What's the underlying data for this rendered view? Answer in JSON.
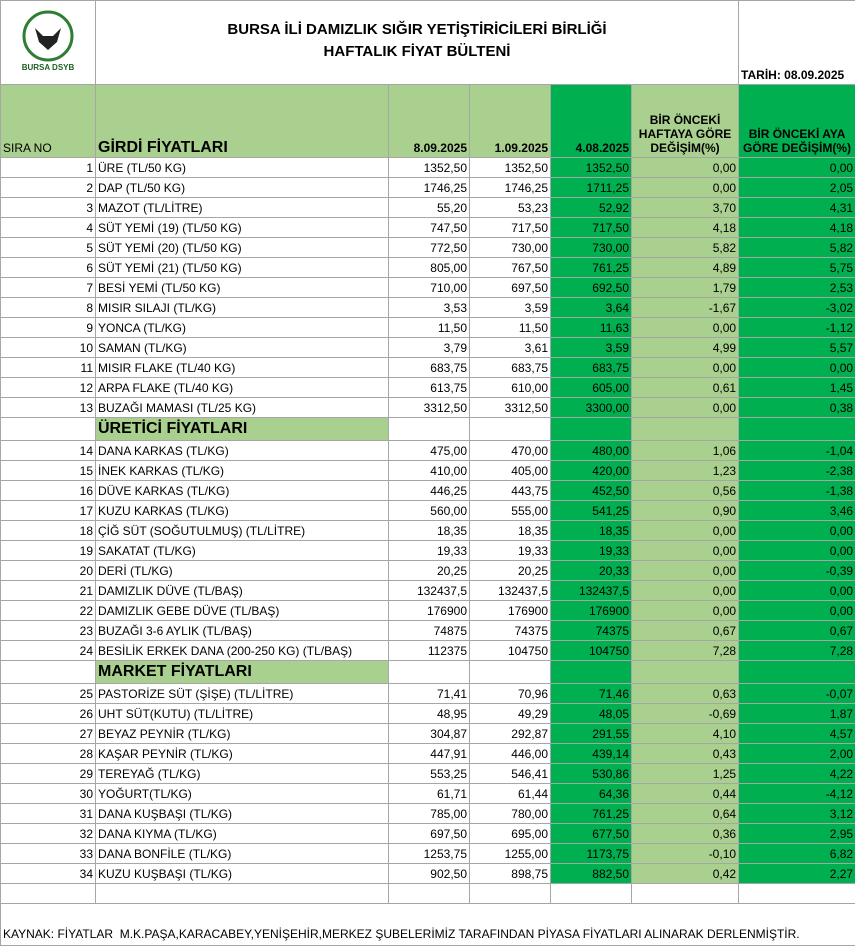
{
  "header": {
    "logo_text": "BURSA DSYB",
    "title_line1": "BURSA İLİ DAMIZLIK SIĞIR YETİŞTİRİCİLERİ BİRLİĞİ",
    "title_line2": "HAFTALIK FİYAT BÜLTENİ",
    "date": "TARİH: 08.09.2025"
  },
  "table": {
    "columns": [
      "SIRA NO",
      "GİRDİ FİYATLARI",
      "8.09.2025",
      "1.09.2025",
      "4.08.2025",
      "BİR ÖNCEKİ HAFTAYA GÖRE DEĞİŞİM(%)",
      "BİR ÖNCEKİ AYA GÖRE DEĞİŞİM(%)"
    ],
    "sections": [
      {
        "rows": [
          [
            "1",
            "ÜRE (TL/50 KG)",
            "1352,50",
            "1352,50",
            "1352,50",
            "0,00",
            "0,00"
          ],
          [
            "2",
            "DAP (TL/50 KG)",
            "1746,25",
            "1746,25",
            "1711,25",
            "0,00",
            "2,05"
          ],
          [
            "3",
            "MAZOT (TL/LİTRE)",
            "55,20",
            "53,23",
            "52,92",
            "3,70",
            "4,31"
          ],
          [
            "4",
            "SÜT YEMİ (19) (TL/50 KG)",
            "747,50",
            "717,50",
            "717,50",
            "4,18",
            "4,18"
          ],
          [
            "5",
            "SÜT YEMİ (20) (TL/50 KG)",
            "772,50",
            "730,00",
            "730,00",
            "5,82",
            "5,82"
          ],
          [
            "6",
            "SÜT YEMİ (21) (TL/50 KG)",
            "805,00",
            "767,50",
            "761,25",
            "4,89",
            "5,75"
          ],
          [
            "7",
            "BESİ YEMİ (TL/50 KG)",
            "710,00",
            "697,50",
            "692,50",
            "1,79",
            "2,53"
          ],
          [
            "8",
            "MISIR SILAJI (TL/KG)",
            "3,53",
            "3,59",
            "3,64",
            "-1,67",
            "-3,02"
          ],
          [
            "9",
            "YONCA (TL/KG)",
            "11,50",
            "11,50",
            "11,63",
            "0,00",
            "-1,12"
          ],
          [
            "10",
            "SAMAN (TL/KG)",
            "3,79",
            "3,61",
            "3,59",
            "4,99",
            "5,57"
          ],
          [
            "11",
            "MISIR FLAKE (TL/40 KG)",
            "683,75",
            "683,75",
            "683,75",
            "0,00",
            "0,00"
          ],
          [
            "12",
            "ARPA FLAKE (TL/40 KG)",
            "613,75",
            "610,00",
            "605,00",
            "0,61",
            "1,45"
          ],
          [
            "13",
            "BUZAĞI MAMASI (TL/25 KG)",
            "3312,50",
            "3312,50",
            "3300,00",
            "0,00",
            "0,38"
          ]
        ]
      },
      {
        "title": "ÜRETİCİ FİYATLARI",
        "rows": [
          [
            "14",
            "DANA KARKAS (TL/KG)",
            "475,00",
            "470,00",
            "480,00",
            "1,06",
            "-1,04"
          ],
          [
            "15",
            "İNEK KARKAS (TL/KG)",
            "410,00",
            "405,00",
            "420,00",
            "1,23",
            "-2,38"
          ],
          [
            "16",
            "DÜVE KARKAS (TL/KG)",
            "446,25",
            "443,75",
            "452,50",
            "0,56",
            "-1,38"
          ],
          [
            "17",
            "KUZU KARKAS (TL/KG)",
            "560,00",
            "555,00",
            "541,25",
            "0,90",
            "3,46"
          ],
          [
            "18",
            "ÇİĞ SÜT (SOĞUTULMUŞ) (TL/LİTRE)",
            "18,35",
            "18,35",
            "18,35",
            "0,00",
            "0,00"
          ],
          [
            "19",
            "SAKATAT (TL/KG)",
            "19,33",
            "19,33",
            "19,33",
            "0,00",
            "0,00"
          ],
          [
            "20",
            "DERİ (TL/KG)",
            "20,25",
            "20,25",
            "20,33",
            "0,00",
            "-0,39"
          ],
          [
            "21",
            "DAMIZLIK DÜVE (TL/BAŞ)",
            "132437,5",
            "132437,5",
            "132437,5",
            "0,00",
            "0,00"
          ],
          [
            "22",
            "DAMIZLIK GEBE DÜVE (TL/BAŞ)",
            "176900",
            "176900",
            "176900",
            "0,00",
            "0,00"
          ],
          [
            "23",
            "BUZAĞI 3-6 AYLIK (TL/BAŞ)",
            "74875",
            "74375",
            "74375",
            "0,67",
            "0,67"
          ],
          [
            "24",
            "BESİLİK ERKEK DANA (200-250 KG) (TL/BAŞ)",
            "112375",
            "104750",
            "104750",
            "7,28",
            "7,28"
          ]
        ]
      },
      {
        "title": "MARKET FİYATLARI",
        "rows": [
          [
            "25",
            "PASTORİZE SÜT (ŞİŞE) (TL/LİTRE)",
            "71,41",
            "70,96",
            "71,46",
            "0,63",
            "-0,07"
          ],
          [
            "26",
            "UHT SÜT(KUTU) (TL/LİTRE)",
            "48,95",
            "49,29",
            "48,05",
            "-0,69",
            "1,87"
          ],
          [
            "27",
            "BEYAZ PEYNİR (TL/KG)",
            "304,87",
            "292,87",
            "291,55",
            "4,10",
            "4,57"
          ],
          [
            "28",
            "KAŞAR PEYNİR (TL/KG)",
            "447,91",
            "446,00",
            "439,14",
            "0,43",
            "2,00"
          ],
          [
            "29",
            "TEREYAĞ (TL/KG)",
            "553,25",
            "546,41",
            "530,86",
            "1,25",
            "4,22"
          ],
          [
            "30",
            "YOĞURT(TL/KG)",
            "61,71",
            "61,44",
            "64,36",
            "0,44",
            "-4,12"
          ],
          [
            "31",
            "DANA KUŞBAŞI (TL/KG)",
            "785,00",
            "780,00",
            "761,25",
            "0,64",
            "3,12"
          ],
          [
            "32",
            "DANA KIYMA (TL/KG)",
            "697,50",
            "695,00",
            "677,50",
            "0,36",
            "2,95"
          ],
          [
            "33",
            "DANA BONFİLE (TL/KG)",
            "1253,75",
            "1255,00",
            "1173,75",
            "-0,10",
            "6,82"
          ],
          [
            "34",
            "KUZU KUŞBAŞI (TL/KG)",
            "902,50",
            "898,75",
            "882,50",
            "0,42",
            "2,27"
          ]
        ]
      }
    ]
  },
  "footer": {
    "source": "KAYNAK: FİYATLAR  M.K.PAŞA,KARACABEY,YENİŞEHİR,MERKEZ ŞUBELERİMİZ TARAFINDAN PİYASA FİYATLARI ALINARAK DERLENMİŞTİR."
  }
}
